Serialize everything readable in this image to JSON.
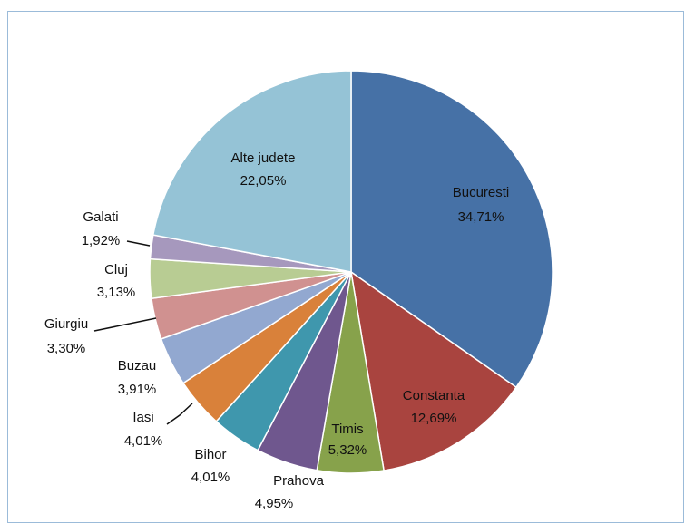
{
  "chart_data": {
    "type": "pie",
    "categories": [
      "Bucuresti",
      "Constanta",
      "Timis",
      "Prahova",
      "Bihor",
      "Iasi",
      "Buzau",
      "Giurgiu",
      "Cluj",
      "Galati",
      "Alte judete"
    ],
    "values": [
      34.71,
      12.69,
      5.32,
      4.95,
      4.01,
      4.01,
      3.91,
      3.3,
      3.13,
      1.92,
      22.05
    ],
    "value_labels": [
      "34,71%",
      "12,69%",
      "5,32%",
      "4,95%",
      "4,01%",
      "4,01%",
      "3,91%",
      "3,30%",
      "3,13%",
      "1,92%",
      "22,05%"
    ],
    "colors": [
      "#4671a6",
      "#a9443f",
      "#87a24b",
      "#6f578e",
      "#3f97ad",
      "#d9813a",
      "#92a8d0",
      "#d09190",
      "#b8cc93",
      "#a698bd",
      "#95c3d6"
    ]
  }
}
